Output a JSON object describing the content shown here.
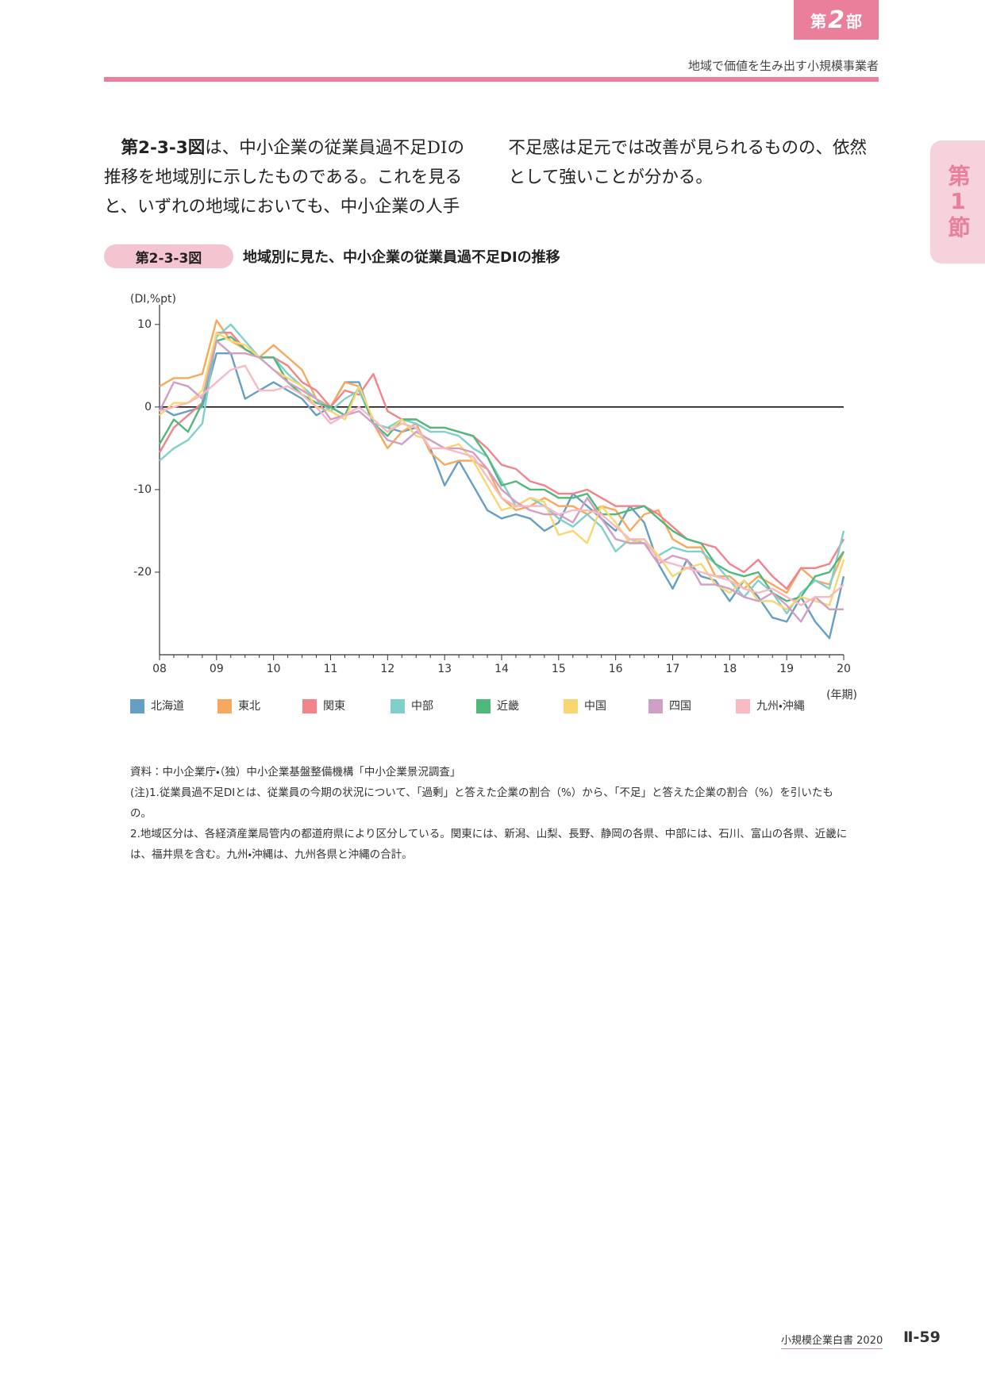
{
  "part_tab": {
    "prefix": "第",
    "number": "2",
    "suffix": "部"
  },
  "running_head": "地域で価値を生み出す小規模事業者",
  "section_tab": "第1節",
  "body": {
    "figure_ref": "第2-3-3図",
    "text": "は、中小企業の従業員過不足DIの推移を地域別に示したものである。これを見ると、いずれの地域においても、中小企業の人手不足感は足元では改善が見られるものの、依然として強いことが分かる。"
  },
  "figure": {
    "label": "第2-3-3図",
    "title": "地域別に見た、中小企業の従業員過不足DIの推移"
  },
  "chart_data": {
    "type": "line",
    "y_label": "(DI,%pt)",
    "x_label": "(年期)",
    "categories": [
      "08",
      null,
      null,
      null,
      "09",
      null,
      null,
      null,
      "10",
      null,
      null,
      null,
      "11",
      null,
      null,
      null,
      "12",
      null,
      null,
      null,
      "13",
      null,
      null,
      null,
      "14",
      null,
      null,
      null,
      "15",
      null,
      null,
      null,
      "16",
      null,
      null,
      null,
      "17",
      null,
      null,
      null,
      "18",
      null,
      null,
      null,
      "19",
      null,
      null,
      null,
      "20"
    ],
    "ylim": [
      -30,
      12
    ],
    "yticks": [
      10,
      0,
      -10,
      -20
    ],
    "grid": false,
    "series": [
      {
        "name": "北海道",
        "color": "#669fc6",
        "values": [
          0,
          -1,
          -0.5,
          0,
          6.5,
          6.5,
          1,
          2,
          3,
          2,
          1,
          -1,
          0,
          3,
          3,
          -2,
          -2.5,
          -3,
          -2.5,
          -5,
          -9.5,
          -6.5,
          -9.5,
          -12.5,
          -13.5,
          -13,
          -13.5,
          -15,
          -14,
          -10.5,
          -12,
          -13.5,
          -15,
          -12,
          -14,
          -19,
          -22,
          -18.5,
          -20.5,
          -21,
          -23.5,
          -21,
          -23,
          -25.5,
          -26,
          -23,
          -26,
          -28,
          -20.5
        ]
      },
      {
        "name": "東北",
        "color": "#f6a95c",
        "values": [
          2.5,
          3.5,
          3.5,
          4,
          10.5,
          8,
          7,
          6,
          7.5,
          6,
          4.5,
          1,
          0,
          3,
          2.5,
          -2,
          -5,
          -3,
          -2,
          -5.5,
          -7,
          -6.5,
          -6.5,
          -7.5,
          -11,
          -12.5,
          -12,
          -11,
          -12,
          -12,
          -13,
          -12,
          -12.5,
          -15,
          -13,
          -12.5,
          -16,
          -17,
          -17,
          -20.5,
          -20.5,
          -22,
          -20.5,
          -21.5,
          -22.5,
          -19.5,
          -21,
          -21.5,
          -17.5
        ]
      },
      {
        "name": "関東",
        "color": "#f2838b",
        "values": [
          -5.5,
          -2.5,
          -1,
          0.5,
          9,
          9,
          7,
          6,
          6,
          5,
          3,
          2,
          0,
          2,
          1.5,
          4,
          -0.5,
          -1.5,
          -1.5,
          -2.5,
          -2.5,
          -3,
          -3.5,
          -5,
          -7,
          -7.5,
          -9,
          -9.5,
          -10.5,
          -10.5,
          -10,
          -11,
          -12,
          -12,
          -12,
          -13,
          -14.5,
          -16,
          -16.5,
          -17,
          -19,
          -20,
          -18.5,
          -20.5,
          -22,
          -19.5,
          -19.5,
          -19,
          -16
        ]
      },
      {
        "name": "中部",
        "color": "#80cfcc",
        "values": [
          -6.5,
          -5,
          -4,
          -2,
          8.5,
          10,
          8,
          6,
          6,
          4,
          2.5,
          1,
          -0.5,
          1,
          2,
          -2,
          -2.5,
          -1.5,
          -2,
          -3,
          -3,
          -3.5,
          -5,
          -6,
          -9,
          -12,
          -11,
          -12,
          -13.5,
          -14.5,
          -13,
          -14.5,
          -17.5,
          -16,
          -16.5,
          -18,
          -17,
          -17.5,
          -17.5,
          -19,
          -21,
          -23,
          -21,
          -22.5,
          -25,
          -22.5,
          -21,
          -22,
          -15
        ]
      },
      {
        "name": "近畿",
        "color": "#50b87a",
        "values": [
          -4.5,
          -1.5,
          -3,
          0.5,
          8,
          8.5,
          7,
          6,
          6,
          3,
          1.5,
          0.5,
          0,
          -1,
          2.5,
          -2,
          -3.5,
          -1.5,
          -1.5,
          -2.5,
          -2.5,
          -3,
          -3.5,
          -6,
          -9.5,
          -9,
          -10,
          -10,
          -11,
          -11,
          -10.5,
          -13,
          -13,
          -12.5,
          -12,
          -13.5,
          -15,
          -16,
          -16.5,
          -19,
          -20,
          -20.5,
          -20,
          -22.5,
          -23.5,
          -23,
          -20.5,
          -20,
          -17.5
        ]
      },
      {
        "name": "中国",
        "color": "#f9d670",
        "values": [
          -1,
          0.5,
          0.5,
          2,
          9,
          8,
          7.5,
          6,
          4.5,
          3.5,
          2.5,
          0,
          -0.5,
          -1.5,
          2.5,
          -1.5,
          -3,
          -1.5,
          -3.5,
          -4,
          -5,
          -4.5,
          -6.5,
          -9.5,
          -12.5,
          -12,
          -11,
          -11.5,
          -15.5,
          -15,
          -16.5,
          -12,
          -14,
          -16.5,
          -16,
          -18,
          -20.5,
          -19.5,
          -19,
          -21.5,
          -22.5,
          -21,
          -23.5,
          -23.5,
          -24.5,
          -23,
          -23.5,
          -24,
          -18.5
        ]
      },
      {
        "name": "四国",
        "color": "#d19ec5",
        "values": [
          -0.5,
          3,
          2.5,
          1,
          8,
          6.5,
          6.5,
          6,
          4.5,
          3,
          2,
          1,
          -1.5,
          -1,
          -0.5,
          -2,
          -4,
          -4.5,
          -3,
          -4,
          -5,
          -5,
          -5.5,
          -7.5,
          -10,
          -11.5,
          -12.5,
          -13,
          -13,
          -14,
          -11,
          -13.5,
          -16,
          -16.5,
          -16.5,
          -19,
          -18,
          -18.5,
          -21.5,
          -21.5,
          -22,
          -23,
          -23.5,
          -22.5,
          -24,
          -26,
          -23,
          -24.5,
          -24.5
        ]
      },
      {
        "name": "九州・沖縄",
        "color": "#f8b9c3",
        "values": [
          -0.5,
          0,
          0.5,
          1.5,
          3,
          4.5,
          5,
          2,
          2,
          2.5,
          1.5,
          0,
          -2,
          -1,
          0,
          -1.5,
          -3,
          -2,
          -2.5,
          -5,
          -5,
          -5.5,
          -6,
          -8.5,
          -11,
          -12,
          -12,
          -12,
          -13,
          -12.5,
          -12.5,
          -13,
          -14.5,
          -16,
          -16,
          -18.5,
          -19,
          -19.5,
          -20,
          -20.5,
          -21,
          -22,
          -22.5,
          -22,
          -23,
          -24,
          -23,
          -23,
          -21.5
        ]
      }
    ]
  },
  "notes": [
    "資料：中小企業庁・（独）中小企業基盤整備機構「中小企業景況調査」",
    "(注)1.従業員過不足DIとは、従業員の今期の状況について、「過剰」と答えた企業の割合（%）から、「不足」と答えた企業の割合（%）を引いたもの。",
    "2.地域区分は、各経済産業局管内の都道府県により区分している。関東には、新潟、山梨、長野、静岡の各県、中部には、石川、富山の各県、近畿には、福井県を含む。九州・沖縄は、九州各県と沖縄の合計。"
  ],
  "footer": {
    "book": "小規模企業白書",
    "year": "2020",
    "page": "Ⅱ-59"
  }
}
